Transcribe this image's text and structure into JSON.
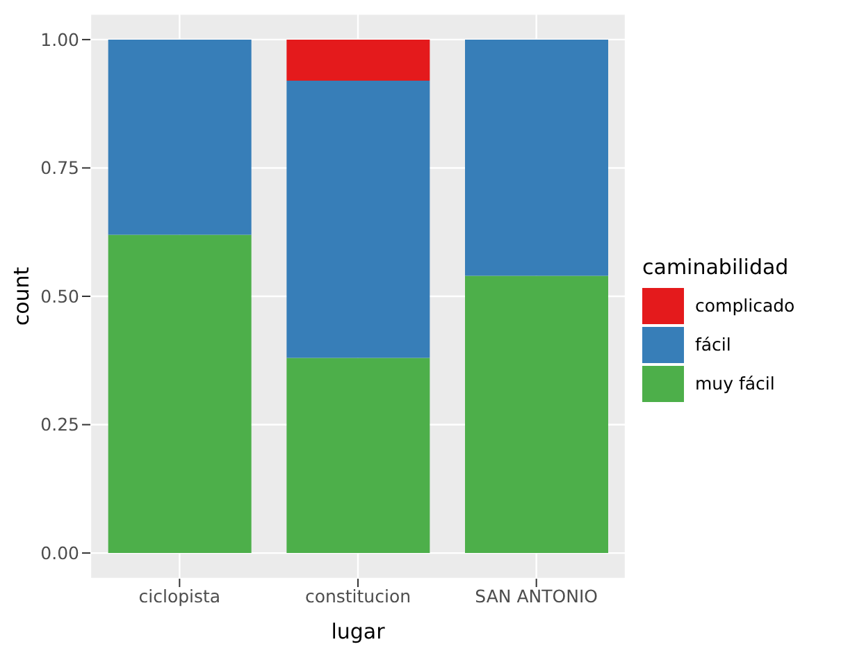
{
  "chart_data": {
    "type": "bar",
    "stacked": true,
    "xlabel": "lugar",
    "ylabel": "count",
    "legend_title": "caminabilidad",
    "categories": [
      "ciclopista",
      "constitucion",
      "SAN ANTONIO"
    ],
    "series": [
      {
        "name": "muy fácil",
        "color": "#4daf4a",
        "values": [
          0.62,
          0.38,
          0.54
        ]
      },
      {
        "name": "fácil",
        "color": "#377eb8",
        "values": [
          0.38,
          0.54,
          0.46
        ]
      },
      {
        "name": "complicado",
        "color": "#e41a1c",
        "values": [
          0,
          0.08,
          0
        ]
      }
    ],
    "ylim": [
      -0.05,
      1.05
    ],
    "yticks": [
      {
        "value": 0,
        "label": "0.00"
      },
      {
        "value": 0.25,
        "label": "0.25"
      },
      {
        "value": 0.5,
        "label": "0.50"
      },
      {
        "value": 0.75,
        "label": "0.75"
      },
      {
        "value": 1,
        "label": "1.00"
      }
    ],
    "grid": true,
    "legend": "right"
  }
}
